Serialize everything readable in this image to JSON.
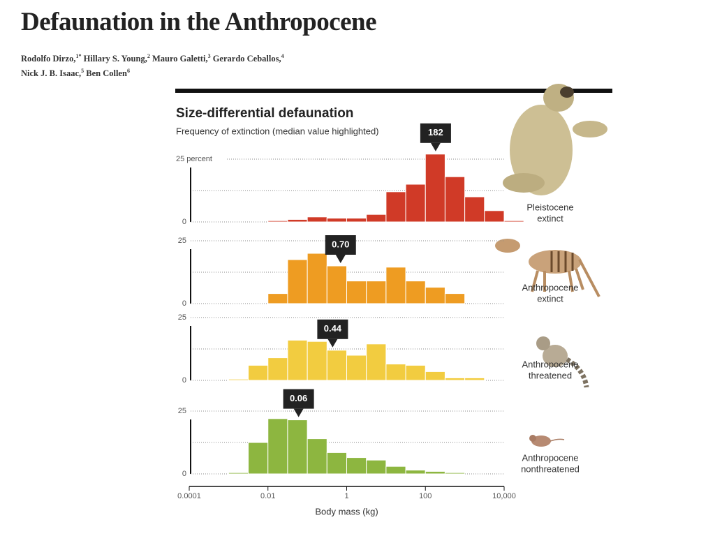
{
  "header": {
    "title": "Defaunation in the Anthropocene",
    "authors": [
      [
        {
          "name": "Rodolfo Dirzo,",
          "sup": "1*"
        },
        {
          "name": "Hillary S. Young,",
          "sup": "2"
        },
        {
          "name": "Mauro Galetti,",
          "sup": "3"
        },
        {
          "name": "Gerardo Ceballos,",
          "sup": "4"
        }
      ],
      [
        {
          "name": "Nick J. B. Isaac,",
          "sup": "5"
        },
        {
          "name": "Ben Collen",
          "sup": "6"
        }
      ]
    ]
  },
  "figure": {
    "title": "Size-differential defaunation",
    "subtitle": "Frequency of extinction (median value highlighted)"
  },
  "chart_data": [
    {
      "type": "histogram",
      "label": [
        "Pleistocene",
        "extinct"
      ],
      "color": "#d03a27",
      "log": true,
      "bins": [
        0.01,
        0.0316,
        0.1,
        0.316,
        1,
        3.16,
        10,
        31.6,
        100,
        316,
        1000,
        3162,
        10000,
        31623
      ],
      "values": [
        0.5,
        1,
        2,
        1.5,
        1.5,
        3,
        12,
        15,
        27,
        18,
        10,
        4.5,
        0.5
      ],
      "median": {
        "value": 182,
        "label": "182"
      },
      "xlim": [
        0.0001,
        10000
      ],
      "ylim": [
        0,
        25
      ],
      "yticks": [
        0,
        {
          "value": 25,
          "label": "25 percent"
        }
      ],
      "ygrid": [
        12.5,
        25
      ]
    },
    {
      "type": "histogram",
      "label": [
        "Anthropocene",
        "extinct"
      ],
      "color": "#ee9c22",
      "log": true,
      "bins": [
        0.01,
        0.0316,
        0.1,
        0.316,
        1,
        3.16,
        10,
        31.6,
        100,
        316,
        1000
      ],
      "values": [
        4,
        17.5,
        20,
        15,
        9,
        9,
        14.5,
        9,
        6.5,
        4
      ],
      "median": {
        "value": 0.7,
        "label": "0.70"
      },
      "xlim": [
        0.0001,
        10000
      ],
      "ylim": [
        0,
        25
      ],
      "yticks": [
        0,
        25
      ],
      "ygrid": [
        12.5,
        25
      ]
    },
    {
      "type": "histogram",
      "label": [
        "Anthropocene",
        "threatened"
      ],
      "color": "#f2cc40",
      "log": true,
      "bins": [
        0.001,
        0.00316,
        0.01,
        0.0316,
        0.1,
        0.316,
        1,
        3.16,
        10,
        31.6,
        100,
        316,
        1000,
        3162
      ],
      "values": [
        0.5,
        6,
        9,
        16,
        15.5,
        12,
        10,
        14.5,
        6.5,
        6,
        3.5,
        1,
        1
      ],
      "median": {
        "value": 0.44,
        "label": "0.44"
      },
      "xlim": [
        0.0001,
        10000
      ],
      "ylim": [
        0,
        25
      ],
      "yticks": [
        0,
        25
      ],
      "ygrid": [
        12.5,
        25
      ]
    },
    {
      "type": "histogram",
      "label": [
        "Anthropocene",
        "nonthreatened"
      ],
      "color": "#8db640",
      "log": true,
      "bins": [
        0.001,
        0.00316,
        0.01,
        0.0316,
        0.1,
        0.316,
        1,
        3.16,
        10,
        31.6,
        100,
        316,
        1000
      ],
      "values": [
        0.5,
        12.5,
        22,
        21.5,
        14,
        8.5,
        6.5,
        5.5,
        3,
        1.5,
        1,
        0.5
      ],
      "median": {
        "value": 0.06,
        "label": "0.06"
      },
      "xlim": [
        0.0001,
        10000
      ],
      "ylim": [
        0,
        25
      ],
      "yticks": [
        0,
        25
      ],
      "ygrid": [
        12.5,
        25
      ],
      "xticks": [
        0.0001,
        0.01,
        1,
        100,
        {
          "value": 10000,
          "label": "10,000"
        }
      ],
      "xlabel": "Body mass (kg)"
    }
  ]
}
